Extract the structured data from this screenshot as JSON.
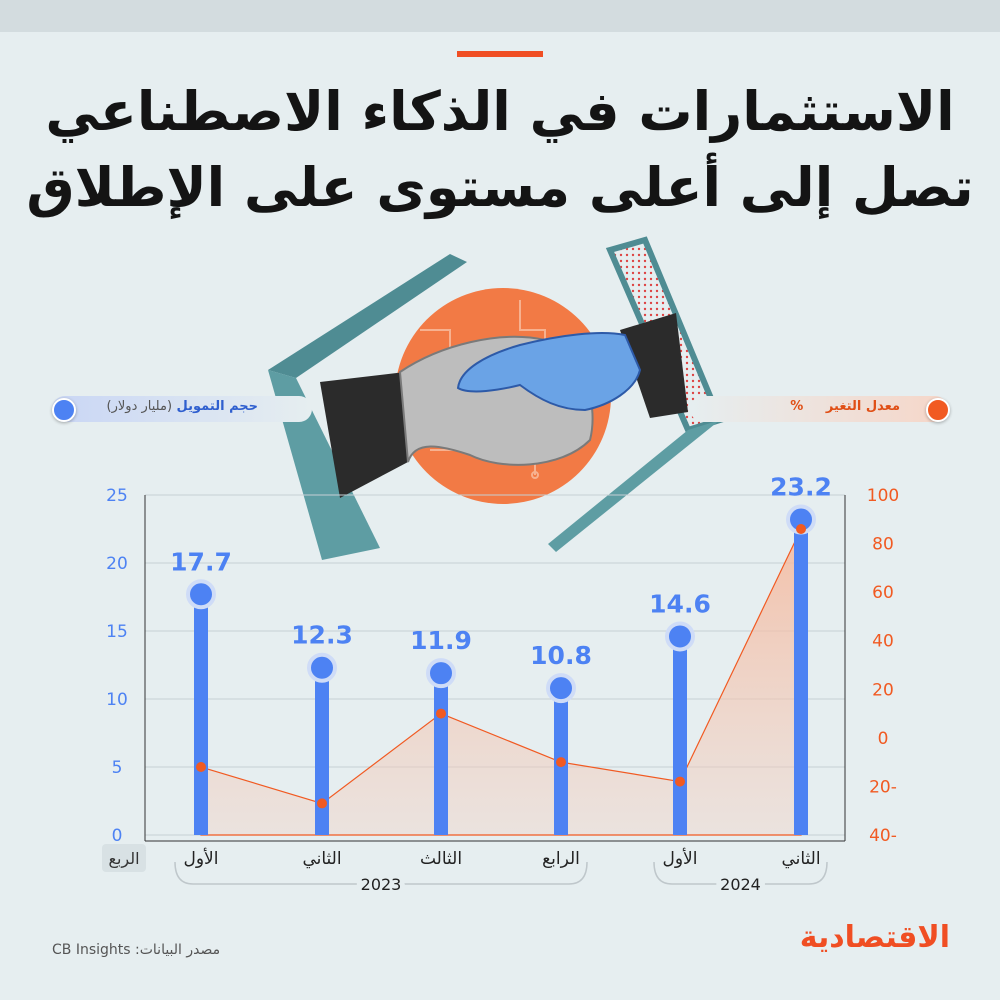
{
  "title_lines": [
    "الاستثمارات في الذكاء الاصطناعي",
    "تصل إلى أعلى مستوى على الإطلاق"
  ],
  "legend": {
    "funding_label": "حجم التمويل",
    "funding_unit": "(مليار دولار)",
    "change_label": "معدل التغير",
    "change_unit": "%"
  },
  "quarter_axis_label": "الربع",
  "source": "مصدر البيانات: CB Insights",
  "logo": "الاقتصادية",
  "colors": {
    "blue": "#4d82f3",
    "orange": "#f15a22",
    "accent": "#f04e23"
  },
  "chart_data": {
    "type": "bar",
    "categories": [
      "الأول",
      "الثاني",
      "الثالث",
      "الرابع",
      "الأول",
      "الثاني"
    ],
    "years": [
      {
        "label": "2023",
        "from": 0,
        "to": 3
      },
      {
        "label": "2024",
        "from": 4,
        "to": 5
      }
    ],
    "series": [
      {
        "name": "حجم التمويل",
        "type": "bar",
        "axis": "left",
        "values": [
          17.7,
          12.3,
          11.9,
          10.8,
          14.6,
          23.2
        ]
      },
      {
        "name": "معدل التغير",
        "type": "area",
        "axis": "right",
        "values": [
          -12,
          -27,
          10,
          -10,
          -18,
          86
        ]
      }
    ],
    "left_axis": {
      "ylim": [
        0,
        25
      ],
      "ticks": [
        "0",
        "5",
        "10",
        "15",
        "20",
        "25"
      ]
    },
    "right_axis": {
      "ylim": [
        -40,
        100
      ],
      "ticks": [
        "-40",
        "-20",
        "0",
        "20",
        "40",
        "60",
        "80",
        "100"
      ],
      "tick_labels": [
        "40-",
        "20-",
        "0",
        "20",
        "40",
        "60",
        "80",
        "100"
      ]
    },
    "grid": true
  }
}
